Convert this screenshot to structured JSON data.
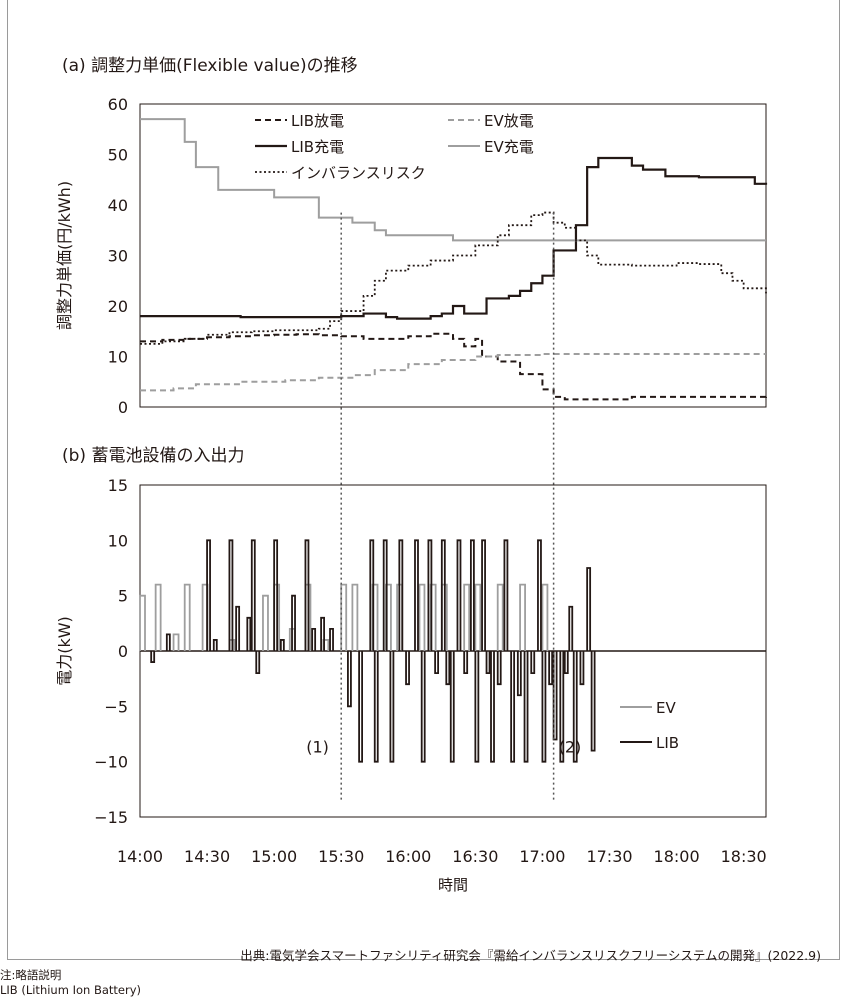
{
  "panel_a_title": "(a) 調整力単価(Flexible value)の推移",
  "panel_b_title": "(b) 蓄電池設備の入出力",
  "source": "出典:電気学会スマートファシリティ研究会『需給インバランスリスクフリーシステムの開発』(2022.9)",
  "note_line1": "注:略語説明",
  "note_line2": "LIB (Lithium Ion Battery)",
  "colors": {
    "lib": "#231815",
    "ev": "#9e9e9e",
    "guide": "#555555"
  },
  "chart_data": [
    {
      "type": "line",
      "title": "(a) 調整力単価(Flexible value)の推移",
      "xlabel": "",
      "ylabel": "調整力単価(円/kWh)",
      "xlim": [
        "14:00",
        "18:40"
      ],
      "ylim": [
        0,
        60
      ],
      "yticks": [
        0,
        10,
        20,
        30,
        40,
        50,
        60
      ],
      "grid": false,
      "legend_position": "top",
      "series": [
        {
          "name": "LIB放電",
          "style": "black-dashed",
          "points": [
            [
              "14:00",
              13
            ],
            [
              "14:05",
              13
            ],
            [
              "14:10",
              13.3
            ],
            [
              "14:20",
              13.5
            ],
            [
              "14:30",
              13.8
            ],
            [
              "14:40",
              14
            ],
            [
              "14:50",
              14.2
            ],
            [
              "15:00",
              14.3
            ],
            [
              "15:10",
              14.4
            ],
            [
              "15:20",
              14.2
            ],
            [
              "15:30",
              14
            ],
            [
              "15:40",
              13.5
            ],
            [
              "15:50",
              13.5
            ],
            [
              "16:00",
              14
            ],
            [
              "16:10",
              14.5
            ],
            [
              "16:20",
              13.5
            ],
            [
              "16:25",
              12
            ],
            [
              "16:30",
              13.5
            ],
            [
              "16:33",
              10
            ],
            [
              "16:40",
              9
            ],
            [
              "16:50",
              6.5
            ],
            [
              "17:00",
              3.5
            ],
            [
              "17:05",
              2
            ],
            [
              "17:10",
              1.5
            ],
            [
              "17:30",
              1.5
            ],
            [
              "17:40",
              2
            ],
            [
              "18:00",
              2
            ],
            [
              "18:30",
              2
            ],
            [
              "18:40",
              2.2
            ]
          ]
        },
        {
          "name": "EV放電",
          "style": "gray-dashed",
          "points": [
            [
              "14:00",
              3.3
            ],
            [
              "14:15",
              3.7
            ],
            [
              "14:25",
              4.5
            ],
            [
              "14:45",
              5
            ],
            [
              "15:05",
              5.3
            ],
            [
              "15:20",
              5.8
            ],
            [
              "15:35",
              6.3
            ],
            [
              "15:45",
              7.3
            ],
            [
              "16:00",
              8.5
            ],
            [
              "16:15",
              9.3
            ],
            [
              "16:30",
              10
            ],
            [
              "16:40",
              10.3
            ],
            [
              "17:00",
              10.5
            ],
            [
              "18:40",
              10.5
            ]
          ]
        },
        {
          "name": "LIB充電",
          "style": "black-solid",
          "points": [
            [
              "14:00",
              18
            ],
            [
              "14:30",
              18
            ],
            [
              "14:45",
              17.8
            ],
            [
              "15:00",
              17.8
            ],
            [
              "15:20",
              17.8
            ],
            [
              "15:30",
              18
            ],
            [
              "15:40",
              18.5
            ],
            [
              "15:50",
              17.8
            ],
            [
              "15:55",
              17.5
            ],
            [
              "16:05",
              17.5
            ],
            [
              "16:10",
              18
            ],
            [
              "16:15",
              18.5
            ],
            [
              "16:20",
              20
            ],
            [
              "16:25",
              18.5
            ],
            [
              "16:30",
              18.5
            ],
            [
              "16:35",
              21.5
            ],
            [
              "16:45",
              22
            ],
            [
              "16:50",
              23
            ],
            [
              "16:55",
              24.5
            ],
            [
              "17:00",
              26
            ],
            [
              "17:05",
              31
            ],
            [
              "17:15",
              36
            ],
            [
              "17:20",
              47.5
            ],
            [
              "17:25",
              49.3
            ],
            [
              "17:40",
              47.8
            ],
            [
              "17:45",
              47
            ],
            [
              "17:55",
              45.7
            ],
            [
              "18:10",
              45.5
            ],
            [
              "18:30",
              45.5
            ],
            [
              "18:35",
              44.2
            ],
            [
              "18:40",
              44
            ]
          ]
        },
        {
          "name": "EV充電",
          "style": "gray-solid",
          "points": [
            [
              "14:00",
              57
            ],
            [
              "14:15",
              57
            ],
            [
              "14:20",
              52.5
            ],
            [
              "14:25",
              47.5
            ],
            [
              "14:35",
              43
            ],
            [
              "14:55",
              43
            ],
            [
              "15:00",
              41.5
            ],
            [
              "15:20",
              37.5
            ],
            [
              "15:25",
              37.5
            ],
            [
              "15:35",
              36.5
            ],
            [
              "15:45",
              35
            ],
            [
              "15:50",
              34
            ],
            [
              "16:05",
              34
            ],
            [
              "16:20",
              33
            ],
            [
              "16:40",
              33
            ],
            [
              "17:00",
              33
            ],
            [
              "18:40",
              33
            ]
          ]
        },
        {
          "name": "インバランスリスク",
          "style": "black-dotted",
          "points": [
            [
              "14:00",
              12.5
            ],
            [
              "14:10",
              13
            ],
            [
              "14:20",
              13.5
            ],
            [
              "14:30",
              14.3
            ],
            [
              "14:40",
              14.8
            ],
            [
              "14:50",
              15
            ],
            [
              "15:00",
              15.2
            ],
            [
              "15:20",
              15.5
            ],
            [
              "15:25",
              17
            ],
            [
              "15:30",
              19
            ],
            [
              "15:40",
              22
            ],
            [
              "15:45",
              25
            ],
            [
              "15:50",
              27
            ],
            [
              "16:00",
              28
            ],
            [
              "16:10",
              29
            ],
            [
              "16:20",
              30
            ],
            [
              "16:30",
              32
            ],
            [
              "16:40",
              34
            ],
            [
              "16:45",
              36
            ],
            [
              "16:55",
              38
            ],
            [
              "17:00",
              38.5
            ],
            [
              "17:05",
              36.5
            ],
            [
              "17:10",
              35.5
            ],
            [
              "17:15",
              33
            ],
            [
              "17:20",
              30
            ],
            [
              "17:25",
              28.2
            ],
            [
              "17:40",
              28
            ],
            [
              "18:00",
              28.5
            ],
            [
              "18:10",
              28.3
            ],
            [
              "18:20",
              26.5
            ],
            [
              "18:25",
              25
            ],
            [
              "18:30",
              23.5
            ],
            [
              "18:40",
              22.5
            ]
          ]
        }
      ]
    },
    {
      "type": "line",
      "title": "(b) 蓄電池設備の入出力",
      "xlabel": "時間",
      "ylabel": "電力(kW)",
      "xticks": [
        "14:00",
        "14:30",
        "15:00",
        "15:30",
        "16:00",
        "16:30",
        "17:00",
        "17:30",
        "18:00",
        "18:30"
      ],
      "xlim": [
        "14:00",
        "18:40"
      ],
      "ylim": [
        -15,
        15
      ],
      "yticks": [
        -15,
        -10,
        -5,
        0,
        5,
        10,
        15
      ],
      "grid": false,
      "legend_position": "bottom-right",
      "series": [
        {
          "name": "EV",
          "pulses": [
            [
              "14:00",
              5
            ],
            [
              "14:07",
              6
            ],
            [
              "14:15",
              1.5
            ],
            [
              "14:20",
              6
            ],
            [
              "14:28",
              6
            ],
            [
              "14:40",
              1
            ],
            [
              "14:55",
              5
            ],
            [
              "15:00",
              6
            ],
            [
              "15:07",
              2
            ],
            [
              "15:14",
              6
            ],
            [
              "15:22",
              1
            ],
            [
              "15:30",
              6
            ],
            [
              "15:35",
              6
            ],
            [
              "15:44",
              6
            ],
            [
              "15:50",
              6
            ],
            [
              "15:55",
              6
            ],
            [
              "16:05",
              6
            ],
            [
              "16:10",
              6
            ],
            [
              "16:15",
              6
            ],
            [
              "16:25",
              6
            ],
            [
              "16:30",
              6
            ],
            [
              "16:40",
              6
            ],
            [
              "16:50",
              6
            ],
            [
              "17:00",
              6
            ]
          ]
        },
        {
          "name": "LIB",
          "pulses": [
            [
              "14:05",
              -1
            ],
            [
              "14:12",
              1.5
            ],
            [
              "14:30",
              10
            ],
            [
              "14:33",
              1
            ],
            [
              "14:40",
              10
            ],
            [
              "14:43",
              4
            ],
            [
              "14:48",
              3
            ],
            [
              "14:50",
              10
            ],
            [
              "14:52",
              -2
            ],
            [
              "15:00",
              10
            ],
            [
              "15:03",
              1
            ],
            [
              "15:08",
              5
            ],
            [
              "15:14",
              10
            ],
            [
              "15:17",
              2
            ],
            [
              "15:21",
              3
            ],
            [
              "15:25",
              2
            ],
            [
              "15:33",
              -5
            ],
            [
              "15:38",
              -10
            ],
            [
              "15:43",
              10
            ],
            [
              "15:45",
              -10
            ],
            [
              "15:49",
              10
            ],
            [
              "15:52",
              -10
            ],
            [
              "15:56",
              10
            ],
            [
              "15:59",
              -3
            ],
            [
              "16:03",
              10
            ],
            [
              "16:06",
              -10
            ],
            [
              "16:09",
              10
            ],
            [
              "16:12",
              -2
            ],
            [
              "16:15",
              10
            ],
            [
              "16:17",
              -3
            ],
            [
              "16:19",
              -10
            ],
            [
              "16:22",
              10
            ],
            [
              "16:25",
              -2
            ],
            [
              "16:28",
              10
            ],
            [
              "16:30",
              -10
            ],
            [
              "16:33",
              10
            ],
            [
              "16:35",
              -2
            ],
            [
              "16:37",
              -10
            ],
            [
              "16:40",
              -3
            ],
            [
              "16:43",
              10
            ],
            [
              "16:46",
              -10
            ],
            [
              "16:49",
              -4
            ],
            [
              "16:52",
              -10
            ],
            [
              "16:55",
              -2
            ],
            [
              "16:58",
              10
            ],
            [
              "17:00",
              -10
            ],
            [
              "17:03",
              -3
            ],
            [
              "17:05",
              -8
            ],
            [
              "17:08",
              -10
            ],
            [
              "17:10",
              -2
            ],
            [
              "17:12",
              4
            ],
            [
              "17:14",
              -10
            ],
            [
              "17:17",
              -3
            ],
            [
              "17:20",
              7.5
            ],
            [
              "17:22",
              -9
            ]
          ]
        }
      ]
    }
  ],
  "annotations": [
    {
      "label": "(1)",
      "time": "15:30",
      "panel_b_y": -10
    },
    {
      "label": "(2)",
      "time": "17:05",
      "panel_b_y": -10
    }
  ]
}
